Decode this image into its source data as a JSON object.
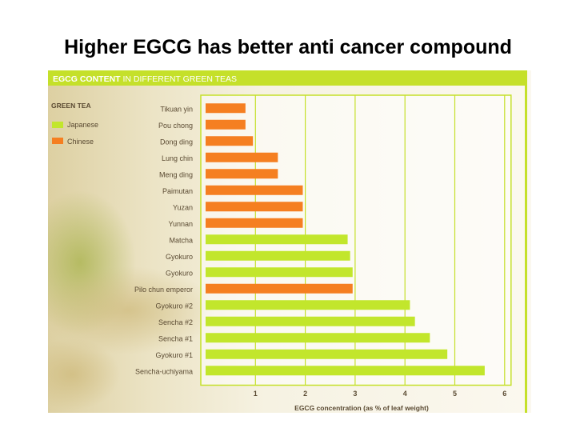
{
  "slide": {
    "title": "Higher EGCG has better anti cancer compound"
  },
  "chart_data": {
    "type": "bar",
    "orientation": "horizontal",
    "title": "EGCG CONTENT IN DIFFERENT GREEN TEAS",
    "title_bold_part": "EGCG CONTENT",
    "title_rest": " IN DIFFERENT GREEN TEAS",
    "xlabel": "EGCG concentration (as % of leaf weight)",
    "ylabel": "",
    "xlim": [
      0,
      6
    ],
    "x_ticks": [
      "1",
      "2",
      "3",
      "4",
      "5",
      "6"
    ],
    "legend": {
      "title": "GREEN TEA",
      "position": "top-left",
      "items": [
        {
          "label": "Japanese",
          "color": "#c2e62c"
        },
        {
          "label": "Chinese",
          "color": "#f57f21"
        }
      ]
    },
    "categories": [
      "Tikuan yin",
      "Pou chong",
      "Dong ding",
      "Lung chin",
      "Meng ding",
      "Paimutan",
      "Yuzan",
      "Yunnan",
      "Matcha",
      "Gyokuro",
      "Gyokuro",
      "Pilo chun emperor",
      "Gyokuro #2",
      "Sencha #2",
      "Sencha #1",
      "Gyokuro #1",
      "Sencha-uchiyama"
    ],
    "values": [
      0.8,
      0.8,
      0.95,
      1.45,
      1.45,
      1.95,
      1.95,
      1.95,
      2.85,
      2.9,
      2.95,
      2.95,
      4.1,
      4.2,
      4.5,
      4.85,
      5.6
    ],
    "groups": [
      "Chinese",
      "Chinese",
      "Chinese",
      "Chinese",
      "Chinese",
      "Chinese",
      "Chinese",
      "Chinese",
      "Japanese",
      "Japanese",
      "Japanese",
      "Chinese",
      "Japanese",
      "Japanese",
      "Japanese",
      "Japanese",
      "Japanese"
    ],
    "grid": true,
    "colors": {
      "title_band": "#c5e02a",
      "frame": "#c5e02a",
      "label_text": "#5a4a32",
      "title_text": "#ffffff"
    }
  }
}
